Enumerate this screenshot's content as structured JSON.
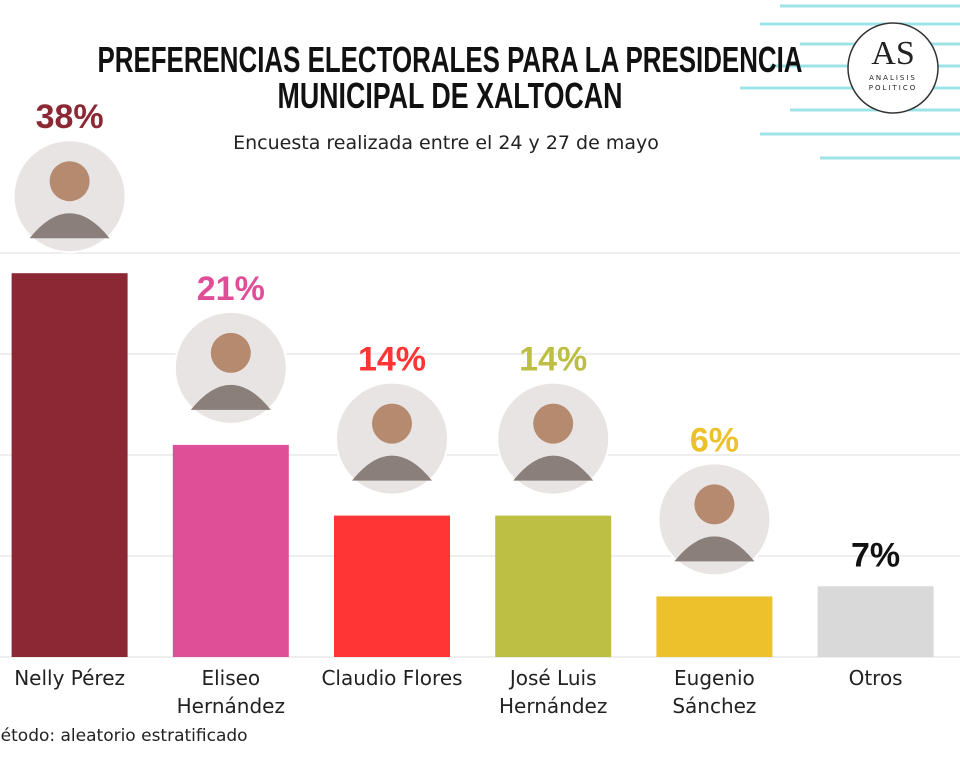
{
  "chart_data": {
    "type": "bar",
    "title": [
      "PREFERENCIAS ELECTORALES PARA LA PRESIDENCIA",
      "MUNICIPAL DE XALTOCAN"
    ],
    "subtitle": "Encuesta realizada entre el 24 y 27 de mayo",
    "categories": [
      "Nelly Pérez",
      "Eliseo Hernández",
      "Claudio Flores",
      "José Luis\nHernández",
      "Eugenio\nSánchez",
      "Otros"
    ],
    "values": [
      38,
      21,
      14,
      14,
      6,
      7
    ],
    "value_labels": [
      "38%",
      "21%",
      "14%",
      "14%",
      "6%",
      "7%"
    ],
    "colors": [
      "#8b2833",
      "#df4f98",
      "#ff3434",
      "#bdbf44",
      "#ecc12b",
      "#d9d9d9"
    ],
    "label_colors": [
      "#8b2833",
      "#df4f98",
      "#ff3434",
      "#bdbf44",
      "#ecc12b",
      "#111111"
    ],
    "ylim": [
      0,
      40
    ],
    "yticks": [
      0,
      10,
      20,
      30,
      40
    ],
    "grid": true
  },
  "logo": {
    "main": "AS",
    "sub": [
      "ANALISIS",
      "POLITICO"
    ]
  },
  "footer": "Método: aleatorio estratificado"
}
